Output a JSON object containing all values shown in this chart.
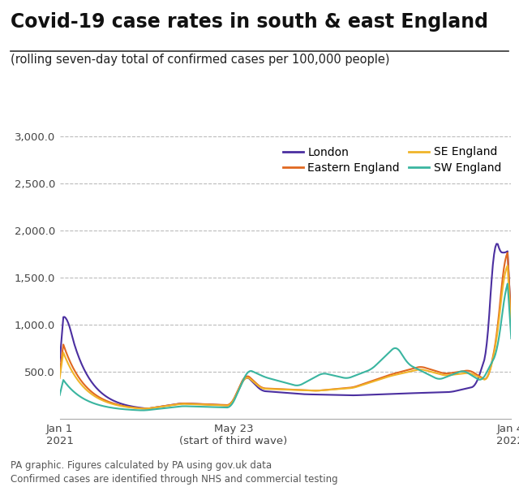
{
  "title": "Covid-19 case rates in south & east England",
  "subtitle": "(rolling seven-day total of confirmed cases per 100,000 people)",
  "xtick_labels": [
    "Jan 1\n2021",
    "May 23\n(start of third wave)",
    "Jan 4\n2022"
  ],
  "footer_line1": "PA graphic. Figures calculated by PA using gov.uk data",
  "footer_line2": "Confirmed cases are identified through NHS and commercial testing",
  "colors": {
    "London": "#4b2fa0",
    "Eastern England": "#e06820",
    "SE England": "#f0b429",
    "SW England": "#3ab5a0"
  },
  "background_color": "#ffffff",
  "grid_color": "#bbbbbb",
  "title_fontsize": 17,
  "subtitle_fontsize": 10.5,
  "axis_fontsize": 9.5,
  "footer_fontsize": 8.5,
  "legend_fontsize": 10
}
